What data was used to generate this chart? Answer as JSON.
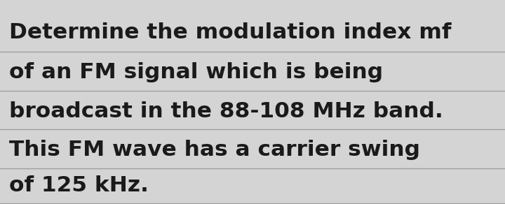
{
  "background_color": "#d4d4d4",
  "text_color": "#1a1a1a",
  "line_color": "#a0a0a0",
  "underline_color": "#e83030",
  "lines": [
    "Determine the modulation index mf",
    "of an FM signal which is being",
    "broadcast in the 88-108 MHz band.",
    "This FM wave has a carrier swing",
    "of 125 kHz."
  ],
  "prefix_line0": "Determine the modulation index ",
  "suffix_line0": "mf",
  "font_size": 22.5,
  "figsize": [
    7.2,
    2.92
  ],
  "dpi": 100
}
